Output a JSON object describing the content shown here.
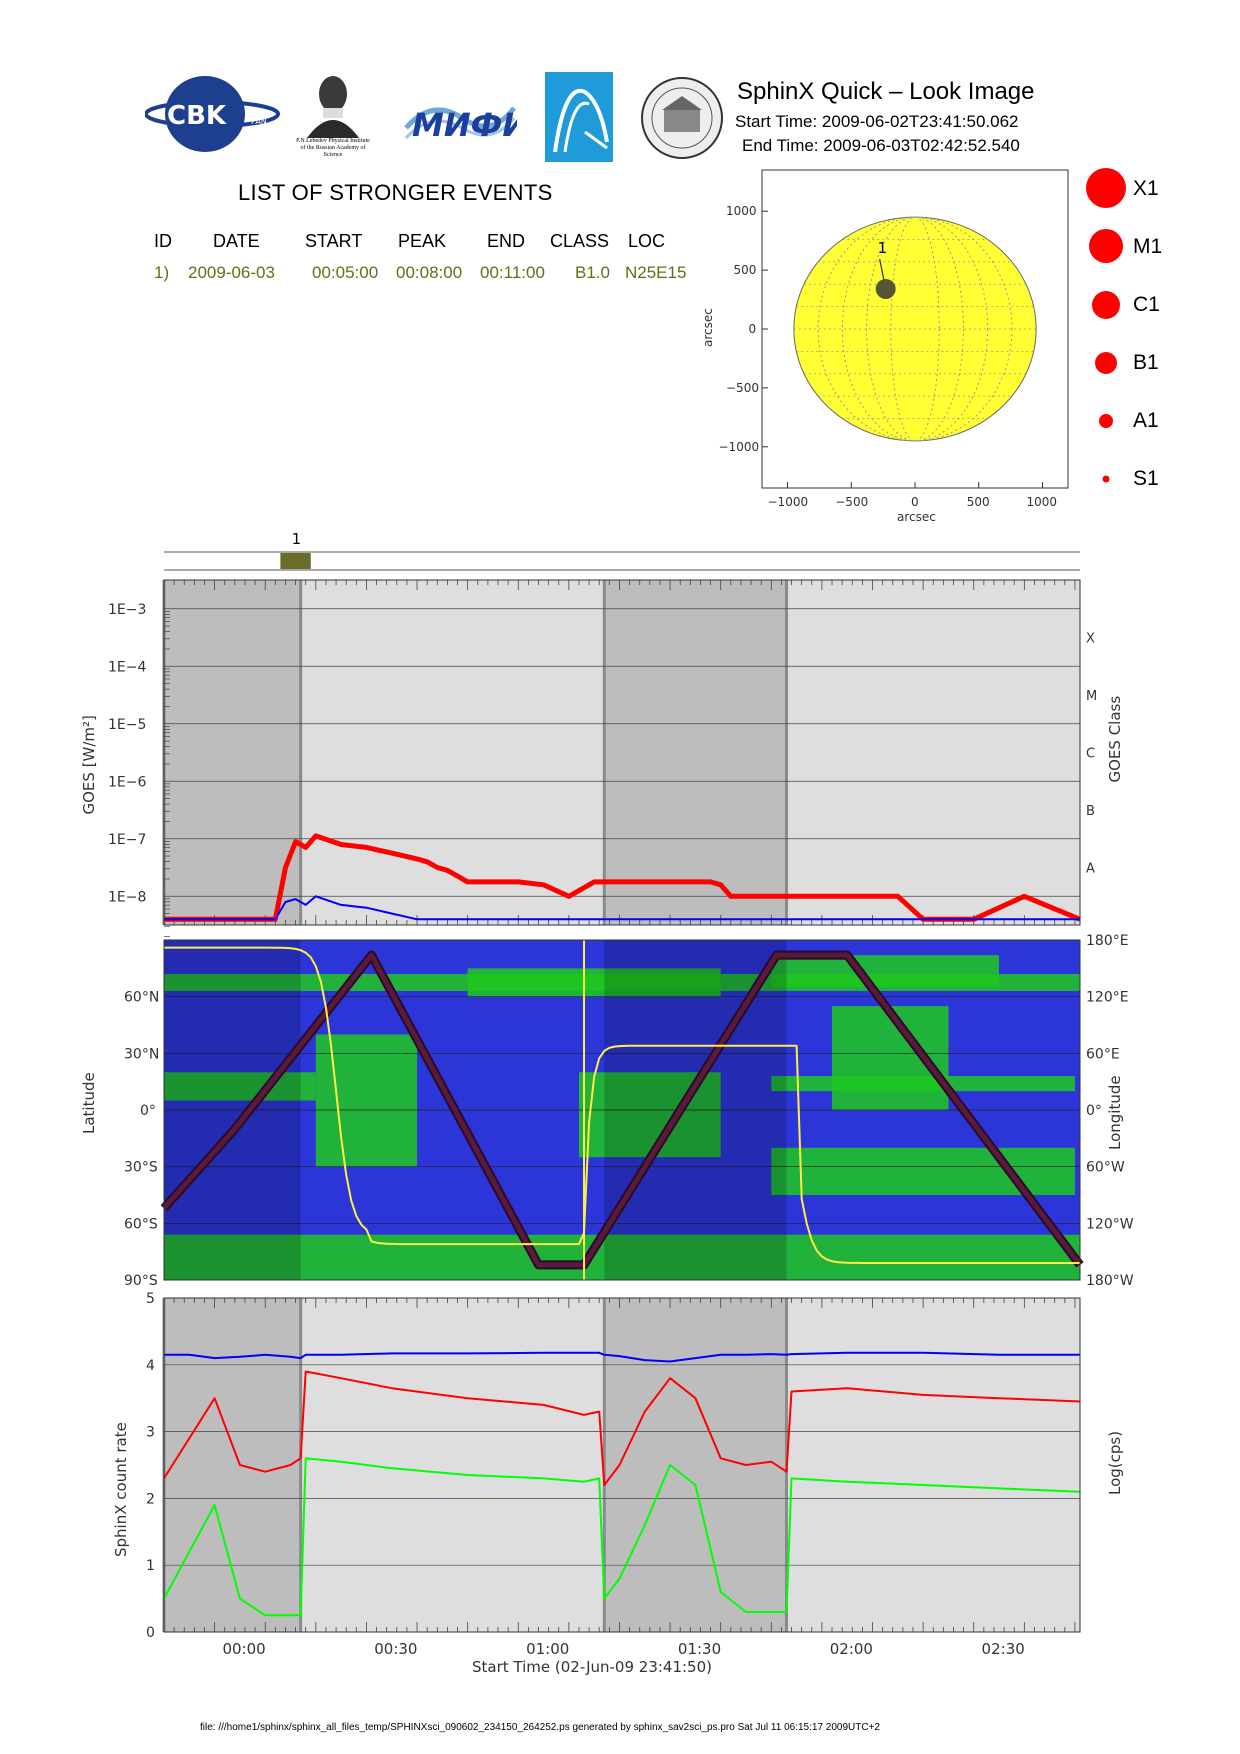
{
  "header": {
    "logos": [
      {
        "name": "cbk-pan-logo",
        "text": "CBK",
        "sub": "PAN"
      },
      {
        "name": "lebedev-institute-logo",
        "text": "P.N.Lebedev Physical Institute of the Russian Academy of Science"
      },
      {
        "name": "mifi-logo",
        "text": "МИФИ"
      },
      {
        "name": "arc-logo",
        "text": ""
      },
      {
        "name": "university-seal-logo",
        "text": ""
      }
    ],
    "title": "SphinX Quick – Look Image",
    "start_time": "Start Time: 2009-06-02T23:41:50.062",
    "end_time": "End Time: 2009-06-03T02:42:52.540"
  },
  "events": {
    "title": "LIST OF STRONGER EVENTS",
    "columns": [
      "ID",
      "DATE",
      "START",
      "PEAK",
      "END",
      "CLASS",
      "LOC"
    ],
    "rows": [
      [
        "1)",
        "2009-06-03",
        "00:05:00",
        "00:08:00",
        "00:11:00",
        "B1.0",
        "N25E15"
      ]
    ]
  },
  "legend_classes": [
    "X1",
    "M1",
    "C1",
    "B1",
    "A1",
    "S1"
  ],
  "chart_data": [
    {
      "type": "scatter",
      "name": "solar-disk-map",
      "xlabel": "arcsec",
      "ylabel": "arcsec",
      "xlim": [
        -1200,
        1200
      ],
      "ylim": [
        -1350,
        1350
      ],
      "xticks": [
        "−1000",
        "−500",
        "0",
        "500",
        "1000"
      ],
      "yticks": [
        "1000",
        "500",
        "0",
        "−500",
        "−1000"
      ],
      "disk_radius": 950,
      "events": [
        {
          "id": "1",
          "x": -230,
          "y": 340
        }
      ],
      "colors": {
        "disk": "#ffff33",
        "event": "#555533"
      }
    },
    {
      "type": "bar",
      "name": "event-timeline",
      "labels": [
        "1"
      ],
      "start": [
        "00:05:00"
      ],
      "end": [
        "00:11:00"
      ],
      "color": "#6b6b2a"
    },
    {
      "type": "line",
      "name": "goes-flux",
      "ylabel": "GOES [W/m²]",
      "y2label": "GOES Class",
      "yticks": [
        "1E−8",
        "1E−7",
        "1E−6",
        "1E−5",
        "1E−4",
        "1E−3"
      ],
      "class_labels": [
        "A",
        "B",
        "C",
        "M",
        "X"
      ],
      "ylim": [
        -8.5,
        -2.5
      ],
      "x_minutes": [
        0,
        9,
        12,
        15,
        17,
        20,
        21,
        22,
        24,
        26,
        28,
        30,
        35,
        40,
        45,
        50,
        52,
        54,
        56,
        58,
        60,
        64,
        70,
        75,
        80,
        85,
        90,
        95,
        100,
        105,
        108,
        110,
        112,
        114,
        116,
        118,
        120,
        125,
        130,
        135,
        140,
        145,
        150,
        155,
        160,
        170,
        181
      ],
      "series": [
        {
          "name": "",
          "color": "#ff0000",
          "width": 5,
          "values": [
            -8.4,
            -8.4,
            -8.4,
            -8.4,
            -8.4,
            -8.4,
            -8.4,
            -8.4,
            -7.5,
            -7.05,
            -7.15,
            -6.95,
            -7.1,
            -7.15,
            -7.25,
            -7.35,
            -7.4,
            -7.5,
            -7.55,
            -7.65,
            -7.75,
            -7.75,
            -7.75,
            -7.8,
            -8.0,
            -7.75,
            -7.75,
            -7.75,
            -7.75,
            -7.75,
            -7.75,
            -7.8,
            -8.0,
            -8.0,
            -8.0,
            -8.0,
            -8.0,
            -8.0,
            -8.0,
            -8.0,
            -8.0,
            -8.0,
            -8.4,
            -8.4,
            -8.4,
            -8.0,
            -8.4
          ]
        },
        {
          "name": "",
          "color": "#0000ff",
          "width": 2,
          "values": [
            -8.4,
            -8.4,
            -8.4,
            -8.4,
            -8.4,
            -8.4,
            -8.4,
            -8.4,
            -8.1,
            -8.05,
            -8.15,
            -8.0,
            -8.15,
            -8.2,
            -8.3,
            -8.4,
            -8.4,
            -8.4,
            -8.4,
            -8.4,
            -8.4,
            -8.4,
            -8.4,
            -8.4,
            -8.4,
            -8.4,
            -8.4,
            -8.4,
            -8.4,
            -8.4,
            -8.4,
            -8.4,
            -8.4,
            -8.4,
            -8.4,
            -8.4,
            -8.4,
            -8.4,
            -8.4,
            -8.4,
            -8.4,
            -8.4,
            -8.4,
            -8.4,
            -8.4,
            -8.4,
            -8.4
          ]
        }
      ],
      "shaded_intervals_minutes": [
        [
          0,
          27
        ],
        [
          87,
          123
        ]
      ]
    },
    {
      "type": "area",
      "name": "orbit-track",
      "ylabel": "Latitude",
      "y2label": "Longitude",
      "lat_ticks": [
        "90°S",
        "60°S",
        "30°S",
        "0°",
        "30°N",
        "60°N"
      ],
      "lon_ticks": [
        "180°W",
        "120°W",
        "60°W",
        "0°",
        "60°E",
        "120°E",
        "180°E"
      ],
      "lat_track_minutes": [
        0,
        14,
        41,
        74,
        83,
        121,
        135,
        181
      ],
      "lat_track_values": [
        -52,
        -10,
        82,
        -82,
        -82,
        82,
        82,
        -82
      ],
      "track_color": "#5a1a3a",
      "longitude_line_color": "#ffee44"
    },
    {
      "type": "line",
      "name": "sphinx-count-rate",
      "ylabel": "SphinX count rate",
      "y2label": "Log(cps)",
      "xlabel": "Start Time (02-Jun-09 23:41:50)",
      "xticks": [
        "00:00",
        "00:30",
        "01:00",
        "01:30",
        "02:00",
        "02:30"
      ],
      "yticks": [
        "0",
        "1",
        "2",
        "3",
        "4",
        "5"
      ],
      "ylim": [
        0,
        5
      ],
      "x_minutes": [
        0,
        5,
        10,
        15,
        20,
        25,
        27,
        28,
        35,
        45,
        60,
        75,
        83,
        86,
        87,
        90,
        95,
        100,
        105,
        110,
        115,
        120,
        123,
        124,
        135,
        150,
        165,
        181
      ],
      "series": [
        {
          "name": "",
          "color": "#0000ff",
          "values": [
            4.15,
            4.15,
            4.1,
            4.12,
            4.15,
            4.12,
            4.1,
            4.15,
            4.15,
            4.17,
            4.17,
            4.18,
            4.18,
            4.18,
            4.15,
            4.13,
            4.07,
            4.05,
            4.1,
            4.15,
            4.15,
            4.16,
            4.15,
            4.16,
            4.18,
            4.18,
            4.15,
            4.15
          ]
        },
        {
          "name": "",
          "color": "#ff0000",
          "values": [
            2.3,
            2.9,
            3.5,
            2.5,
            2.4,
            2.5,
            2.6,
            3.9,
            3.8,
            3.65,
            3.5,
            3.4,
            3.25,
            3.3,
            2.2,
            2.5,
            3.3,
            3.8,
            3.5,
            2.6,
            2.5,
            2.55,
            2.4,
            3.6,
            3.65,
            3.55,
            3.5,
            3.45
          ]
        },
        {
          "name": "",
          "color": "#00ff00",
          "values": [
            0.5,
            1.2,
            1.9,
            0.5,
            0.25,
            0.25,
            0.25,
            2.6,
            2.55,
            2.45,
            2.35,
            2.3,
            2.25,
            2.3,
            0.5,
            0.8,
            1.6,
            2.5,
            2.2,
            0.6,
            0.3,
            0.3,
            0.3,
            2.3,
            2.25,
            2.2,
            2.15,
            2.1
          ]
        }
      ],
      "shaded_intervals_minutes": [
        [
          0,
          27
        ],
        [
          87,
          123
        ]
      ]
    }
  ],
  "footer": "file: ///home1/sphinx/sphinx_all_files_temp/SPHINXsci_090602_234150_264252.ps generated by sphinx_sav2sci_ps.pro Sat Jul 11 06:15:17 2009UTC+2"
}
